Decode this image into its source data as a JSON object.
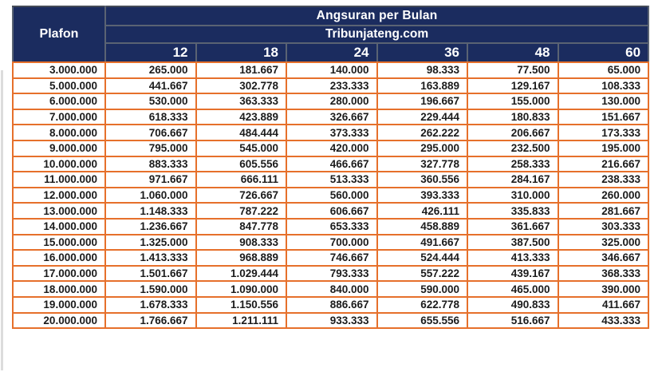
{
  "chart_data": {
    "type": "table",
    "title": "Angsuran per Bulan",
    "subtitle": "Tribunjateng.com",
    "corner_label": "Plafon",
    "tenor_months": [
      "12",
      "18",
      "24",
      "36",
      "48",
      "60"
    ],
    "rows": [
      {
        "plafon": "3.000.000",
        "installments": [
          "265.000",
          "181.667",
          "140.000",
          "98.333",
          "77.500",
          "65.000"
        ]
      },
      {
        "plafon": "5.000.000",
        "installments": [
          "441.667",
          "302.778",
          "233.333",
          "163.889",
          "129.167",
          "108.333"
        ]
      },
      {
        "plafon": "6.000.000",
        "installments": [
          "530.000",
          "363.333",
          "280.000",
          "196.667",
          "155.000",
          "130.000"
        ]
      },
      {
        "plafon": "7.000.000",
        "installments": [
          "618.333",
          "423.889",
          "326.667",
          "229.444",
          "180.833",
          "151.667"
        ]
      },
      {
        "plafon": "8.000.000",
        "installments": [
          "706.667",
          "484.444",
          "373.333",
          "262.222",
          "206.667",
          "173.333"
        ]
      },
      {
        "plafon": "9.000.000",
        "installments": [
          "795.000",
          "545.000",
          "420.000",
          "295.000",
          "232.500",
          "195.000"
        ]
      },
      {
        "plafon": "10.000.000",
        "installments": [
          "883.333",
          "605.556",
          "466.667",
          "327.778",
          "258.333",
          "216.667"
        ]
      },
      {
        "plafon": "11.000.000",
        "installments": [
          "971.667",
          "666.111",
          "513.333",
          "360.556",
          "284.167",
          "238.333"
        ]
      },
      {
        "plafon": "12.000.000",
        "installments": [
          "1.060.000",
          "726.667",
          "560.000",
          "393.333",
          "310.000",
          "260.000"
        ]
      },
      {
        "plafon": "13.000.000",
        "installments": [
          "1.148.333",
          "787.222",
          "606.667",
          "426.111",
          "335.833",
          "281.667"
        ]
      },
      {
        "plafon": "14.000.000",
        "installments": [
          "1.236.667",
          "847.778",
          "653.333",
          "458.889",
          "361.667",
          "303.333"
        ]
      },
      {
        "plafon": "15.000.000",
        "installments": [
          "1.325.000",
          "908.333",
          "700.000",
          "491.667",
          "387.500",
          "325.000"
        ]
      },
      {
        "plafon": "16.000.000",
        "installments": [
          "1.413.333",
          "968.889",
          "746.667",
          "524.444",
          "413.333",
          "346.667"
        ]
      },
      {
        "plafon": "17.000.000",
        "installments": [
          "1.501.667",
          "1.029.444",
          "793.333",
          "557.222",
          "439.167",
          "368.333"
        ]
      },
      {
        "plafon": "18.000.000",
        "installments": [
          "1.590.000",
          "1.090.000",
          "840.000",
          "590.000",
          "465.000",
          "390.000"
        ]
      },
      {
        "plafon": "19.000.000",
        "installments": [
          "1.678.333",
          "1.150.556",
          "886.667",
          "622.778",
          "490.833",
          "411.667"
        ]
      },
      {
        "plafon": "20.000.000",
        "installments": [
          "1.766.667",
          "1.211.111",
          "933.333",
          "655.556",
          "516.667",
          "433.333"
        ]
      }
    ]
  },
  "colors": {
    "header_bg": "#1b2c5f",
    "header_border": "#5a6373",
    "header_border_dark": "#454b57",
    "body_border": "#e6702b",
    "body_text": "#1b1b1b",
    "header_text": "#ffffff",
    "page_bg": "#ffffff"
  }
}
